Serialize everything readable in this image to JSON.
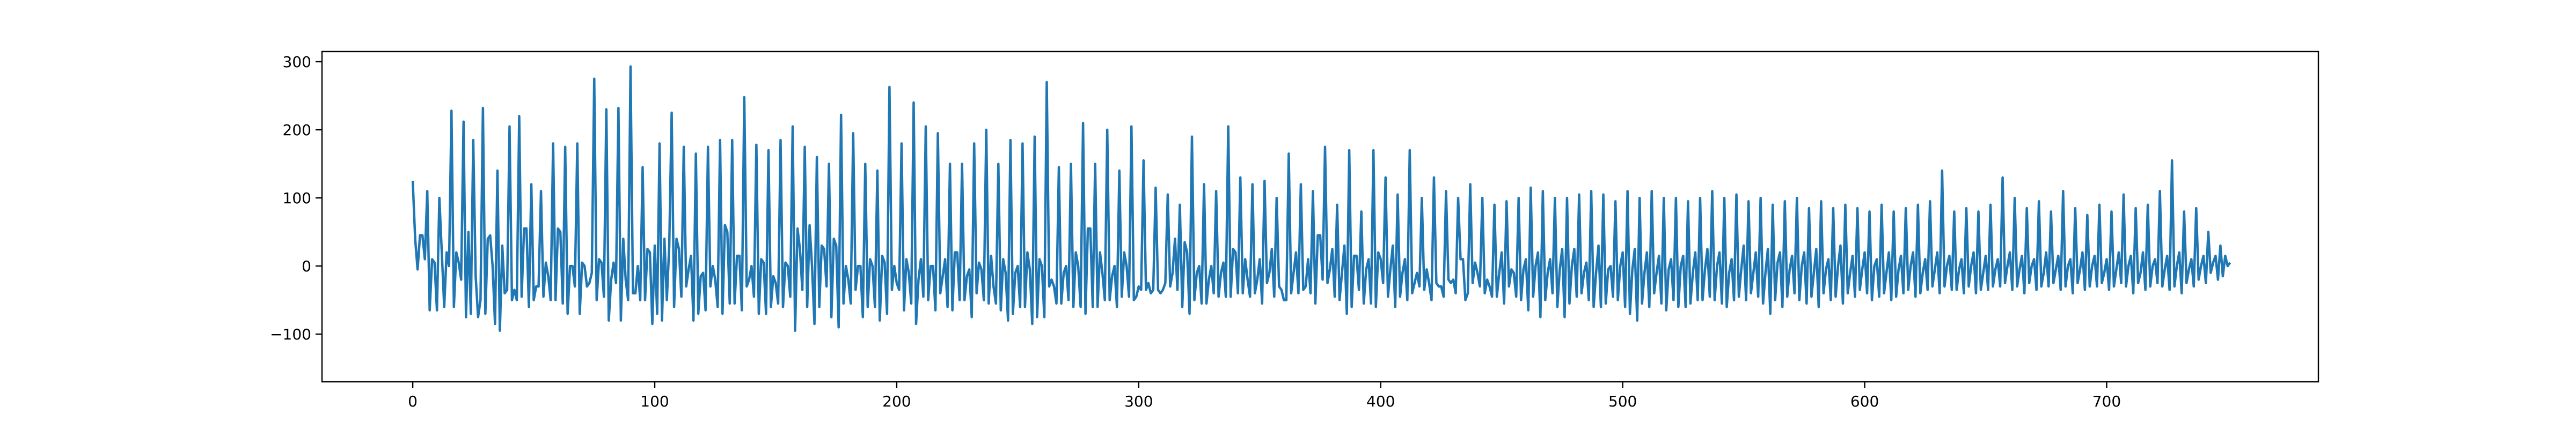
{
  "chart_data": {
    "type": "line",
    "title": "",
    "xlabel": "",
    "ylabel": "",
    "xlim": [
      -37.5,
      787.5
    ],
    "ylim": [
      -170,
      315
    ],
    "x_ticks": [
      0,
      100,
      200,
      300,
      400,
      500,
      600,
      700
    ],
    "y_ticks": [
      -100,
      0,
      100,
      200,
      300
    ],
    "x_tick_labels": [
      "0",
      "100",
      "200",
      "300",
      "400",
      "500",
      "600",
      "700"
    ],
    "y_tick_labels": [
      "−100",
      "0",
      "100",
      "200",
      "300"
    ],
    "grid": false,
    "legend": "none",
    "line_color": "#1f77b4",
    "series": [
      {
        "x_start": 0,
        "x_step": 1,
        "values": [
          125,
          40,
          -5,
          45,
          45,
          10,
          110,
          -65,
          10,
          5,
          -65,
          100,
          20,
          -60,
          20,
          0,
          228,
          -60,
          20,
          5,
          -20,
          212,
          -75,
          50,
          -70,
          185,
          -15,
          -75,
          -50,
          232,
          -70,
          40,
          45,
          0,
          -85,
          140,
          -95,
          30,
          -40,
          -35,
          205,
          -50,
          -35,
          -50,
          220,
          -45,
          55,
          55,
          -60,
          120,
          -50,
          -30,
          -30,
          110,
          -45,
          5,
          -15,
          -50,
          180,
          -50,
          55,
          50,
          -55,
          175,
          -70,
          0,
          0,
          -30,
          180,
          -70,
          5,
          0,
          -30,
          -25,
          -10,
          275,
          -50,
          10,
          5,
          -45,
          230,
          -80,
          -20,
          5,
          -25,
          232,
          -80,
          40,
          -20,
          -50,
          293,
          -40,
          -40,
          0,
          -50,
          145,
          -50,
          25,
          20,
          -85,
          30,
          -70,
          180,
          -80,
          40,
          -50,
          30,
          225,
          -60,
          40,
          25,
          -45,
          175,
          -30,
          -5,
          15,
          -80,
          165,
          -70,
          -15,
          -10,
          -65,
          175,
          -30,
          0,
          -20,
          -60,
          185,
          -70,
          60,
          50,
          -55,
          185,
          -55,
          15,
          15,
          -65,
          248,
          -30,
          -20,
          0,
          -45,
          178,
          -70,
          10,
          5,
          -70,
          170,
          -60,
          -15,
          -25,
          -55,
          185,
          -60,
          5,
          0,
          -45,
          205,
          -95,
          55,
          25,
          -35,
          175,
          -60,
          60,
          0,
          -85,
          160,
          -60,
          30,
          25,
          -30,
          150,
          -75,
          40,
          30,
          -90,
          222,
          -55,
          0,
          -20,
          -55,
          195,
          -35,
          0,
          0,
          -75,
          150,
          -60,
          10,
          0,
          -60,
          140,
          -80,
          15,
          5,
          -70,
          263,
          -35,
          0,
          -25,
          -35,
          180,
          -65,
          10,
          -10,
          -55,
          240,
          -85,
          -20,
          10,
          -45,
          205,
          -50,
          0,
          0,
          -65,
          195,
          -40,
          -15,
          10,
          -60,
          150,
          -65,
          20,
          20,
          -50,
          150,
          -50,
          -15,
          -5,
          -75,
          180,
          -40,
          5,
          -5,
          -50,
          200,
          -55,
          15,
          -30,
          -55,
          150,
          -65,
          10,
          -10,
          -80,
          185,
          -70,
          -10,
          0,
          -60,
          180,
          -60,
          20,
          -5,
          -85,
          190,
          -75,
          10,
          0,
          -75,
          270,
          -30,
          -20,
          -30,
          -55,
          145,
          -55,
          -10,
          0,
          -50,
          150,
          -60,
          20,
          0,
          -60,
          210,
          -70,
          55,
          55,
          -60,
          150,
          -60,
          20,
          -10,
          -50,
          200,
          -50,
          -15,
          0,
          -60,
          140,
          -45,
          20,
          0,
          -45,
          205,
          -50,
          -45,
          -30,
          -35,
          155,
          -35,
          -25,
          -40,
          -35,
          115,
          -35,
          -40,
          -35,
          -25,
          105,
          -30,
          -10,
          40,
          -35,
          90,
          -60,
          35,
          20,
          -70,
          190,
          -50,
          -10,
          0,
          -55,
          120,
          -55,
          -20,
          0,
          -40,
          110,
          -45,
          -10,
          5,
          -45,
          205,
          -45,
          25,
          20,
          -40,
          130,
          -40,
          10,
          -20,
          -45,
          120,
          -40,
          -20,
          10,
          -55,
          125,
          -25,
          -10,
          25,
          -45,
          100,
          -30,
          -35,
          -50,
          -50,
          165,
          -40,
          -10,
          20,
          -40,
          120,
          -35,
          -30,
          10,
          -40,
          110,
          -55,
          45,
          45,
          -20,
          175,
          -25,
          -5,
          25,
          -45,
          90,
          -50,
          -10,
          30,
          -70,
          170,
          -60,
          15,
          15,
          -35,
          80,
          -55,
          -5,
          10,
          -55,
          170,
          -60,
          20,
          10,
          -25,
          130,
          -45,
          -5,
          30,
          -60,
          105,
          -45,
          -10,
          10,
          -50,
          170,
          -40,
          -25,
          -10,
          -30,
          100,
          -35,
          -5,
          -25,
          -50,
          130,
          -25,
          -30,
          -30,
          -45,
          110,
          -20,
          -25,
          -20,
          -40,
          100,
          10,
          10,
          -50,
          -40,
          120,
          -25,
          5,
          -10,
          -30,
          100,
          -40,
          -20,
          -30,
          -45,
          90,
          -45,
          -10,
          20,
          -55,
          95,
          -30,
          -5,
          -10,
          -45,
          100,
          -50,
          -5,
          10,
          -65,
          115,
          -45,
          0,
          20,
          -75,
          110,
          -50,
          -10,
          10,
          -40,
          100,
          -60,
          -5,
          25,
          -75,
          100,
          -55,
          0,
          25,
          -45,
          105,
          -40,
          -10,
          5,
          -50,
          110,
          -60,
          -10,
          30,
          -60,
          105,
          -55,
          -5,
          0,
          -45,
          95,
          -50,
          0,
          20,
          -60,
          110,
          -70,
          -5,
          25,
          -80,
          100,
          -55,
          -10,
          20,
          -60,
          110,
          -40,
          -10,
          15,
          -55,
          100,
          -65,
          -5,
          10,
          -50,
          100,
          -60,
          0,
          15,
          -60,
          95,
          -55,
          -10,
          20,
          -50,
          100,
          -50,
          -5,
          25,
          -45,
          110,
          -50,
          0,
          20,
          -55,
          100,
          -60,
          -10,
          10,
          -50,
          105,
          -45,
          -5,
          30,
          -50,
          95,
          -40,
          -10,
          20,
          -45,
          100,
          -55,
          -10,
          25,
          -70,
          90,
          -50,
          5,
          20,
          -60,
          95,
          -45,
          -5,
          15,
          -40,
          100,
          -50,
          0,
          20,
          -55,
          85,
          -45,
          -10,
          25,
          -60,
          95,
          -40,
          -5,
          10,
          -50,
          85,
          -45,
          0,
          30,
          -55,
          90,
          -40,
          -10,
          15,
          -45,
          85,
          -35,
          -5,
          20,
          -40,
          80,
          -50,
          0,
          10,
          -45,
          90,
          -40,
          -10,
          20,
          -50,
          80,
          -45,
          -5,
          15,
          -40,
          85,
          -35,
          0,
          20,
          -45,
          90,
          -40,
          -10,
          10,
          -35,
          95,
          -30,
          -5,
          20,
          -40,
          140,
          -30,
          0,
          15,
          -35,
          80,
          -35,
          -5,
          10,
          -40,
          85,
          -30,
          0,
          20,
          -40,
          80,
          -35,
          -10,
          15,
          -35,
          90,
          -30,
          -5,
          10,
          -30,
          130,
          -25,
          0,
          20,
          -35,
          100,
          -30,
          -5,
          15,
          -40,
          85,
          -25,
          0,
          10,
          -35,
          95,
          -30,
          -10,
          20,
          -30,
          80,
          -25,
          -5,
          15,
          -35,
          110,
          -30,
          0,
          10,
          -40,
          85,
          -25,
          -5,
          20,
          -35,
          75,
          -30,
          0,
          15,
          -30,
          90,
          -25,
          -10,
          10,
          -35,
          80,
          -30,
          -5,
          20,
          -25,
          105,
          -30,
          0,
          15,
          -40,
          85,
          -25,
          -10,
          20,
          -35,
          90,
          -30,
          0,
          10,
          -25,
          110,
          -30,
          -5,
          15,
          -35,
          155,
          -30,
          0,
          20,
          -40,
          80,
          -25,
          -5,
          10,
          -30,
          85,
          -20,
          0,
          15,
          -25,
          50,
          -10,
          5,
          15,
          -20,
          30,
          -15,
          15,
          0,
          5
        ]
      }
    ]
  }
}
